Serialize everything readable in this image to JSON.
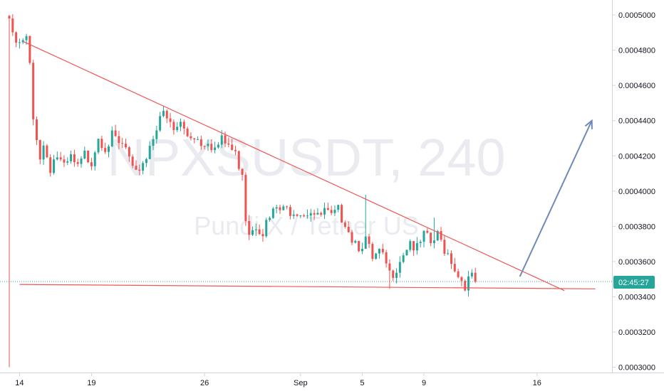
{
  "chart_data": {
    "type": "candlestick",
    "watermark": {
      "symbol": "NPXSUSDT, 240",
      "exchange": "Pundi X / Tether US"
    },
    "x_ticks": [
      "14",
      "19",
      "26",
      "Sep",
      "5",
      "9",
      "16"
    ],
    "y_ticks": [
      "0.0005000",
      "0.0004800",
      "0.0004600",
      "0.0004400",
      "0.0004200",
      "0.0004000",
      "0.0003800",
      "0.0003600",
      "0.0003400",
      "0.0003200",
      "0.0003000"
    ],
    "ylim": [
      0.000297,
      0.0005085
    ],
    "last_price": 0.0003486,
    "countdown_label": "02:45:27",
    "grid": false,
    "colors": {
      "up": "#26a69a",
      "down": "#ef5350",
      "trendline": "#f05454",
      "arrow": "#6e8ab8",
      "price_line": "#26a69a"
    },
    "close_path": [
      [
        0,
        0.000498
      ],
      [
        1,
        0.000486
      ],
      [
        3,
        0.000482
      ],
      [
        5,
        0.000486
      ],
      [
        6,
        0.00047
      ],
      [
        7,
        0.00044
      ],
      [
        8,
        0.000432
      ],
      [
        9,
        0.00042
      ],
      [
        10,
        0.000426
      ],
      [
        12,
        0.000414
      ],
      [
        13,
        0.000418
      ],
      [
        14,
        0.00042
      ],
      [
        16,
        0.000412
      ],
      [
        18,
        0.000418
      ],
      [
        20,
        0.000412
      ],
      [
        22,
        0.00042
      ],
      [
        24,
        0.000418
      ],
      [
        26,
        0.000432
      ],
      [
        28,
        0.000426
      ],
      [
        30,
        0.00043
      ],
      [
        32,
        0.000426
      ],
      [
        34,
        0.000424
      ],
      [
        36,
        0.00041
      ],
      [
        37,
        0.000408
      ],
      [
        38,
        0.000414
      ],
      [
        40,
        0.00042
      ],
      [
        42,
        0.000432
      ],
      [
        44,
        0.000444
      ],
      [
        46,
        0.00044
      ],
      [
        48,
        0.000434
      ],
      [
        50,
        0.000438
      ],
      [
        52,
        0.000432
      ],
      [
        54,
        0.000432
      ],
      [
        56,
        0.000428
      ],
      [
        58,
        0.00043
      ],
      [
        60,
        0.000424
      ],
      [
        62,
        0.000428
      ],
      [
        64,
        0.000426
      ],
      [
        66,
        0.00042
      ],
      [
        68,
        0.000412
      ],
      [
        69,
        0.000386
      ],
      [
        70,
        0.000378
      ],
      [
        72,
        0.000382
      ],
      [
        74,
        0.000378
      ],
      [
        76,
        0.000384
      ],
      [
        78,
        0.00039
      ],
      [
        80,
        0.000388
      ],
      [
        82,
        0.00039
      ],
      [
        84,
        0.00039
      ],
      [
        86,
        0.000388
      ],
      [
        88,
        0.00039
      ],
      [
        90,
        0.000384
      ],
      [
        92,
        0.000388
      ],
      [
        94,
        0.000384
      ],
      [
        96,
        0.000388
      ],
      [
        98,
        0.000384
      ],
      [
        100,
        0.000374
      ],
      [
        102,
        0.00037
      ],
      [
        104,
        0.000372
      ],
      [
        106,
        0.00036
      ],
      [
        108,
        0.000364
      ],
      [
        110,
        0.000358
      ],
      [
        111,
        0.000352
      ],
      [
        113,
        0.000358
      ],
      [
        115,
        0.000366
      ],
      [
        117,
        0.000372
      ],
      [
        119,
        0.000366
      ],
      [
        121,
        0.000374
      ],
      [
        123,
        0.00037
      ],
      [
        125,
        0.000374
      ],
      [
        127,
        0.000368
      ],
      [
        129,
        0.000362
      ],
      [
        131,
        0.000352
      ],
      [
        133,
        0.000348
      ],
      [
        135,
        0.00035
      ],
      [
        136,
        0.000349
      ]
    ],
    "lines": [
      {
        "name": "descending-resistance",
        "from": [
          4,
          0.000485
        ],
        "to": [
          162,
          0.0003435
        ]
      },
      {
        "name": "horizontal-support",
        "from": [
          3,
          0.000347
        ],
        "to": [
          171,
          0.0003445
        ]
      }
    ],
    "arrow": {
      "from": [
        149,
        0.0003515
      ],
      "to": [
        170,
        0.00044
      ]
    }
  }
}
